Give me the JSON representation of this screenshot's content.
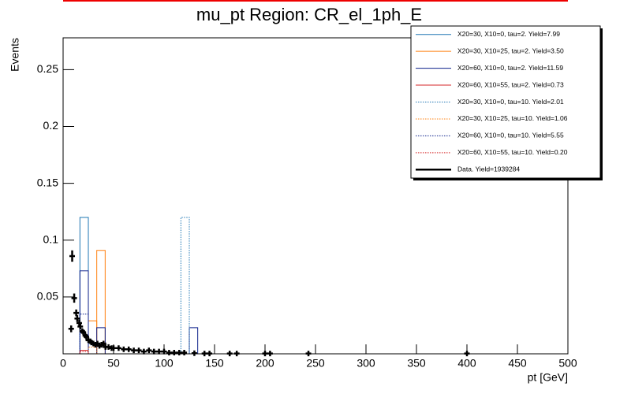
{
  "chart_data": {
    "type": "histogram",
    "title": "mu_pt Region: CR_el_1ph_E",
    "x_label": "pt [GeV]",
    "y_label": "Events",
    "xlim": [
      0,
      500
    ],
    "ylim": [
      0,
      0.278
    ],
    "xticks": [
      0,
      50,
      100,
      150,
      200,
      250,
      300,
      350,
      400,
      450,
      500
    ],
    "yticks": [
      0.05,
      0.1,
      0.15,
      0.2,
      0.25
    ],
    "legend": "upper right",
    "bins": [
      0,
      8.33,
      16.67,
      25,
      33.33,
      41.67,
      50,
      58.33,
      66.67,
      75,
      83.33,
      91.67,
      100,
      108.33,
      116.67,
      125,
      133.33,
      141.67
    ],
    "series": [
      {
        "name": "X20=30, X10=0, tau=2. Yield=7.99",
        "color": "#1f77b4",
        "style": "solid",
        "values": [
          0,
          0,
          0.12,
          0,
          0,
          0,
          0,
          0,
          0,
          0,
          0,
          0,
          0,
          0,
          0,
          0,
          0
        ]
      },
      {
        "name": "X20=30, X10=25, tau=2. Yield=3.50",
        "color": "#ff7f0e",
        "style": "solid",
        "values": [
          0,
          0,
          0,
          0.029,
          0.091,
          0,
          0,
          0,
          0,
          0,
          0,
          0,
          0,
          0,
          0,
          0,
          0
        ]
      },
      {
        "name": "X20=60, X10=0, tau=2. Yield=11.59",
        "color": "#0b1f8a",
        "style": "solid",
        "values": [
          0,
          0,
          0.073,
          0,
          0.023,
          0,
          0,
          0,
          0,
          0,
          0,
          0,
          0,
          0,
          0,
          0.023,
          0
        ]
      },
      {
        "name": "X20=60, X10=55, tau=2. Yield=0.73",
        "color": "#d62728",
        "style": "solid",
        "values": [
          0,
          0,
          0.003,
          0,
          0,
          0,
          0,
          0,
          0,
          0,
          0,
          0,
          0,
          0,
          0,
          0,
          0
        ]
      },
      {
        "name": "X20=30, X10=0, tau=10. Yield=2.01",
        "color": "#1f77b4",
        "style": "dotted",
        "values": [
          0,
          0,
          0,
          0,
          0,
          0,
          0,
          0,
          0,
          0,
          0,
          0,
          0,
          0,
          0.12,
          0,
          0
        ]
      },
      {
        "name": "X20=30, X10=25, tau=10. Yield=1.06",
        "color": "#ff7f0e",
        "style": "dotted",
        "values": [
          0,
          0,
          0,
          0.006,
          0,
          0,
          0,
          0,
          0,
          0,
          0,
          0,
          0,
          0,
          0,
          0,
          0
        ]
      },
      {
        "name": "X20=60, X10=0, tau=10. Yield=5.55",
        "color": "#0b1f8a",
        "style": "dotted",
        "values": [
          0,
          0,
          0.035,
          0,
          0,
          0,
          0,
          0,
          0,
          0,
          0,
          0,
          0,
          0,
          0,
          0,
          0
        ]
      },
      {
        "name": "X20=60, X10=55, tau=10. Yield=0.20",
        "color": "#d62728",
        "style": "dotted",
        "values": [
          0,
          0,
          0.002,
          0,
          0,
          0,
          0,
          0,
          0,
          0,
          0,
          0,
          0,
          0,
          0,
          0,
          0
        ]
      }
    ],
    "points": {
      "name": "Data. Yield=1939284",
      "color": "#000000",
      "x": [
        8,
        9,
        11,
        13,
        14,
        16,
        17,
        19,
        20,
        22,
        23,
        25,
        27,
        28,
        30,
        32,
        34,
        36,
        38,
        40,
        42,
        45,
        48,
        50,
        55,
        60,
        65,
        70,
        75,
        80,
        85,
        90,
        95,
        100,
        105,
        110,
        115,
        120,
        130,
        140,
        145,
        165,
        172,
        200,
        205,
        243,
        400
      ],
      "values": [
        0.022,
        0.086,
        0.049,
        0.036,
        0.031,
        0.027,
        0.024,
        0.02,
        0.019,
        0.016,
        0.015,
        0.012,
        0.011,
        0.01,
        0.009,
        0.008,
        0.009,
        0.007,
        0.008,
        0.009,
        0.006,
        0.006,
        0.005,
        0.005,
        0.005,
        0.004,
        0.004,
        0.003,
        0.003,
        0.002,
        0.003,
        0.002,
        0.002,
        0.002,
        0.001,
        0.001,
        0.001,
        0.001,
        0.0005,
        0.0003,
        0.0003,
        0.0003,
        0.0003,
        0.0003,
        0.0003,
        0.0003,
        0.0003
      ],
      "errors": [
        0.003,
        0.005,
        0.004,
        0.003,
        0.003,
        0.003,
        0.002,
        0.002,
        0.002,
        0.002,
        0.002,
        0.002,
        0.002,
        0.001,
        0.001,
        0.001,
        0.001,
        0.001,
        0.001,
        0.001,
        0.001,
        0.001,
        0.001,
        0.001,
        0.001,
        0.001,
        0.001,
        0.001,
        0.001,
        0.001,
        0.001,
        0.001,
        0.001,
        0.001,
        0.001,
        0.001,
        0.001,
        0.001,
        0.0005,
        0.0003,
        0.0003,
        0.0003,
        0.0003,
        0.0003,
        0.0003,
        0.0003,
        0.0003
      ]
    }
  }
}
